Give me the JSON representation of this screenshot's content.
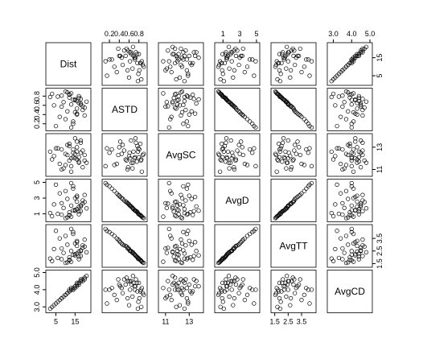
{
  "chart_data": {
    "type": "scatter_matrix",
    "point_color": "#000000",
    "variables": [
      {
        "name": "Dist",
        "lim": [
          1,
          22
        ],
        "ticks": [
          5,
          15
        ],
        "values": [
          14,
          17,
          8,
          19,
          12,
          15,
          3,
          16,
          10,
          18,
          13,
          6,
          20,
          11,
          16,
          9,
          14,
          17,
          4,
          12,
          19,
          7,
          15,
          13,
          18,
          10,
          16,
          2,
          14,
          21,
          11,
          17,
          8,
          15,
          20,
          12,
          5,
          18,
          13,
          16
        ]
      },
      {
        "name": "ASTD",
        "lim": [
          0.1,
          0.92
        ],
        "ticks": [
          0.2,
          0.4,
          0.6,
          0.8
        ],
        "values": [
          0.72,
          0.65,
          0.81,
          0.58,
          0.77,
          0.45,
          0.85,
          0.69,
          0.3,
          0.74,
          0.62,
          0.79,
          0.55,
          0.88,
          0.4,
          0.67,
          0.2,
          0.76,
          0.6,
          0.83,
          0.5,
          0.35,
          0.71,
          0.12,
          0.64,
          0.9,
          0.53,
          0.78,
          0.25,
          0.68,
          0.47,
          0.8,
          0.57,
          0.73,
          0.38,
          0.84,
          0.15,
          0.61,
          0.86,
          0.42
        ]
      },
      {
        "name": "AvgSC",
        "lim": [
          10.6,
          14
        ],
        "ticks": [
          11,
          13
        ],
        "values": [
          12.1,
          11.6,
          12.8,
          11.2,
          13.1,
          12.4,
          11.9,
          12.6,
          11.4,
          13.4,
          12.0,
          12.9,
          11.8,
          12.3,
          13.0,
          11.1,
          12.5,
          11.7,
          12.2,
          13.3,
          12.7,
          11.5,
          12.0,
          11.3,
          13.6,
          12.4,
          11.9,
          12.6,
          12.8,
          11.6,
          13.2,
          12.1,
          11.0,
          13.8,
          12.3,
          11.8,
          12.9,
          12.5,
          10.8,
          13.5
        ]
      },
      {
        "name": "AvgD",
        "lim": [
          0.3,
          5.1
        ],
        "ticks": [
          1,
          3,
          5
        ],
        "values": [
          1.45,
          1.9,
          0.9,
          2.3,
          1.2,
          3.0,
          0.7,
          1.6,
          3.9,
          1.35,
          2.05,
          1.0,
          2.5,
          0.55,
          3.3,
          1.75,
          4.5,
          1.3,
          2.2,
          0.85,
          2.7,
          3.6,
          1.5,
          4.9,
          1.95,
          0.45,
          2.55,
          1.1,
          4.2,
          1.7,
          2.9,
          0.95,
          2.35,
          1.4,
          3.4,
          0.8,
          4.7,
          2.1,
          0.65,
          3.15
        ]
      },
      {
        "name": "AvgTT",
        "lim": [
          1.4,
          4.4
        ],
        "ticks": [
          1.5,
          2.5,
          3.5
        ],
        "values": [
          2.2,
          2.45,
          1.85,
          2.75,
          2.0,
          3.1,
          1.7,
          2.3,
          3.7,
          2.1,
          2.5,
          1.95,
          2.85,
          1.6,
          3.3,
          2.35,
          4.0,
          2.05,
          2.65,
          1.8,
          2.95,
          3.5,
          2.25,
          4.25,
          2.5,
          1.55,
          2.9,
          1.9,
          3.85,
          2.4,
          3.0,
          1.85,
          2.7,
          2.15,
          3.4,
          1.75,
          4.1,
          2.55,
          1.65,
          3.2
        ]
      },
      {
        "name": "AvgCD",
        "lim": [
          2.8,
          5.0
        ],
        "ticks": [
          {
            "value": 3,
            "label": "3.0"
          },
          {
            "value": 4,
            "label": "4.0"
          },
          {
            "value": 5,
            "label": "5.0"
          }
        ],
        "values": [
          4.0,
          4.3,
          3.5,
          4.5,
          3.9,
          4.1,
          3.0,
          4.4,
          3.7,
          4.6,
          4.0,
          3.3,
          4.7,
          3.8,
          4.3,
          3.6,
          4.0,
          4.4,
          3.1,
          3.9,
          4.6,
          3.4,
          4.2,
          4.0,
          4.5,
          3.7,
          4.3,
          2.9,
          4.1,
          4.8,
          3.8,
          4.4,
          3.5,
          4.2,
          4.6,
          4.0,
          3.2,
          4.5,
          4.1,
          4.2
        ]
      }
    ]
  }
}
